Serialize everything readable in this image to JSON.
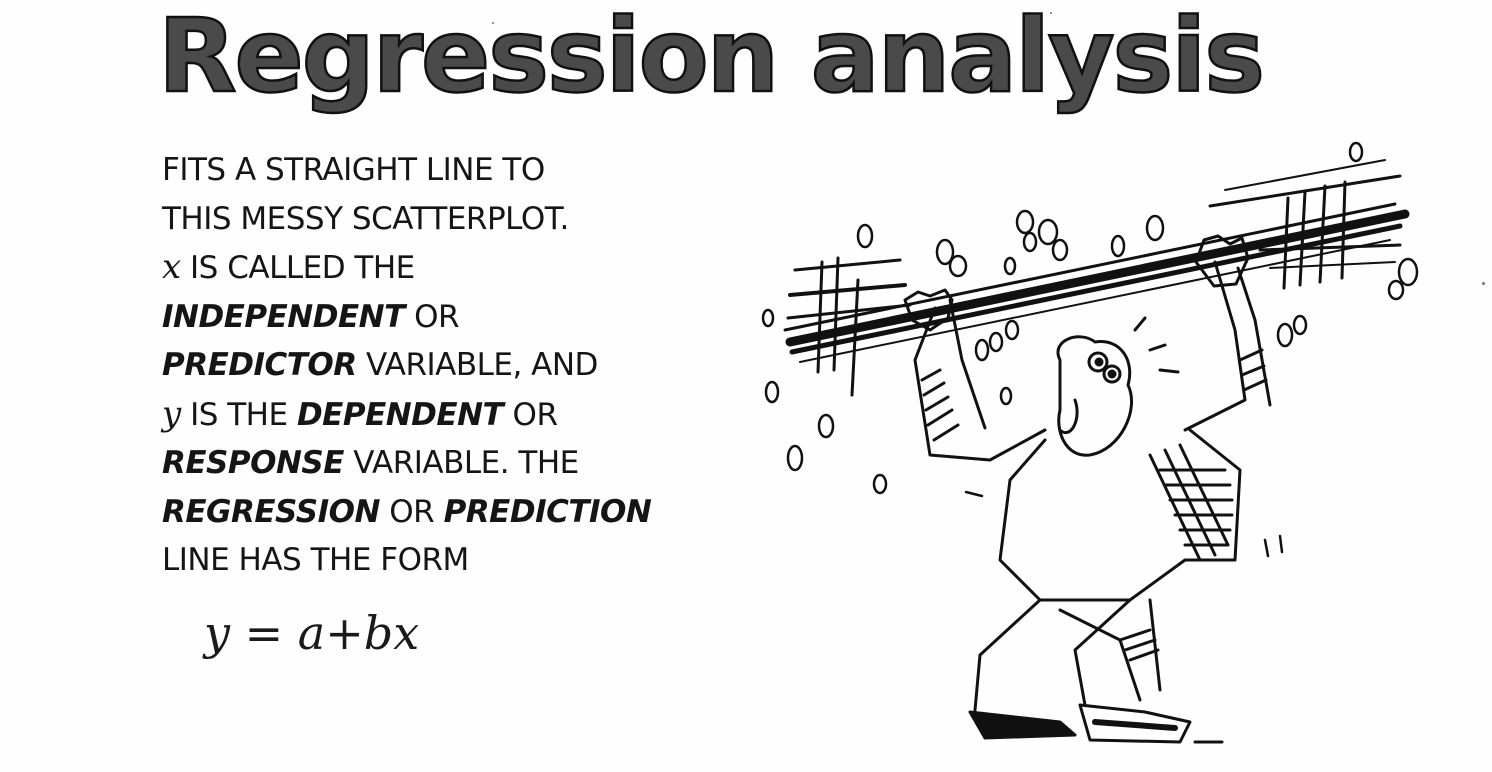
{
  "title": "Regression analysis",
  "caption": {
    "l1": "Fits a straight line to",
    "l2": "this messy scatterplot.",
    "l3_var": "x",
    "l3_rest": " is called the",
    "l4_em": "independent",
    "l4_rest": " or",
    "l5_em": "predictor",
    "l5_rest": " variable, and",
    "l6_var": "y",
    "l6_mid": " is the ",
    "l6_em": "dependent",
    "l6_rest": " or",
    "l7_em": "response",
    "l7_rest": " variable. The",
    "l8_em1": "regression",
    "l8_mid": " or ",
    "l8_em2": "prediction",
    "l9": "line has the form"
  },
  "formula": "y = a+bx",
  "illustration": {
    "subject": "man-holding-regression-line",
    "ink_color": "#111111"
  }
}
